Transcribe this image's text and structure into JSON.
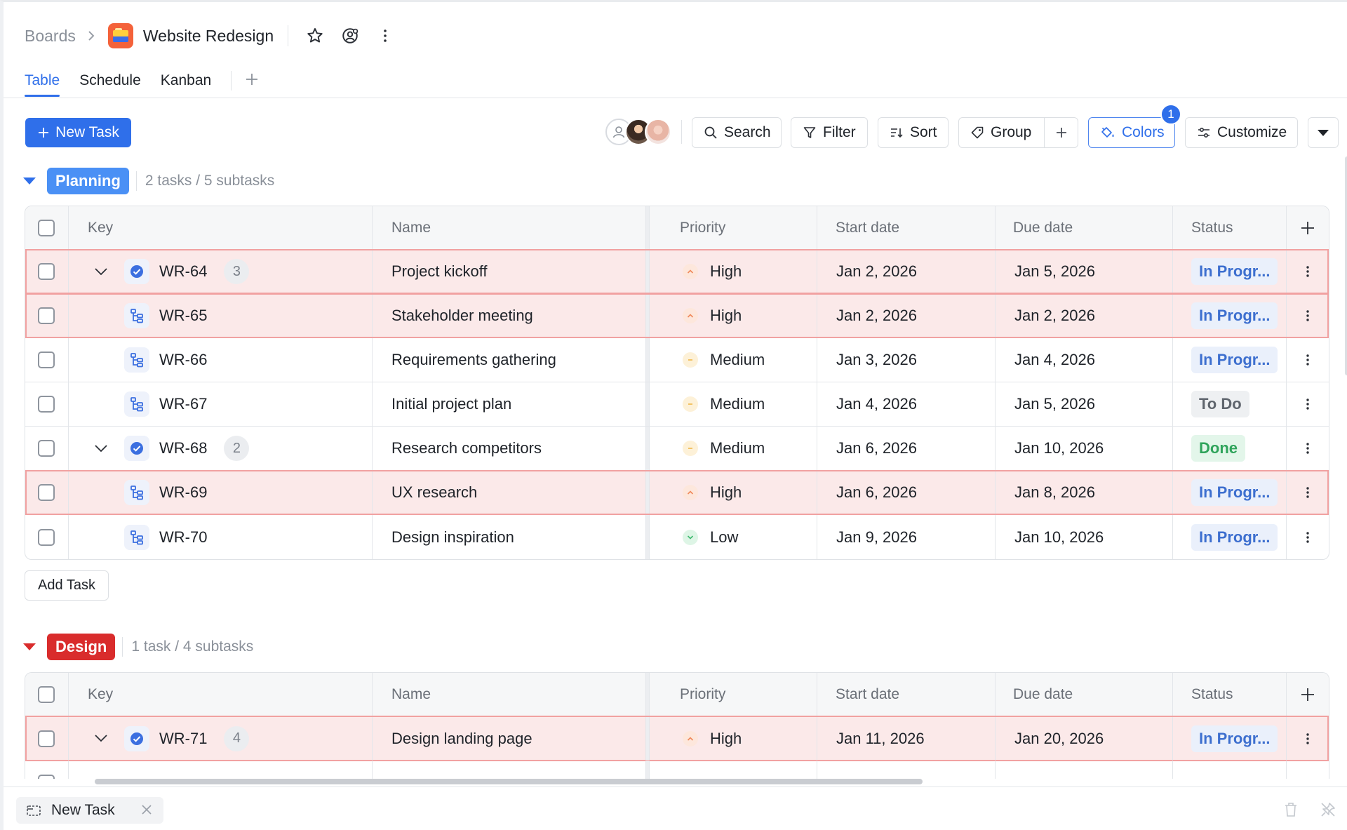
{
  "header": {
    "breadcrumb_root": "Boards",
    "board_title": "Website Redesign"
  },
  "tabs": [
    {
      "label": "Table",
      "active": true
    },
    {
      "label": "Schedule",
      "active": false
    },
    {
      "label": "Kanban",
      "active": false
    }
  ],
  "toolbar": {
    "new_task_label": "New Task",
    "search_label": "Search",
    "filter_label": "Filter",
    "sort_label": "Sort",
    "group_label": "Group",
    "colors_label": "Colors",
    "colors_badge": "1",
    "customize_label": "Customize"
  },
  "columns": {
    "key": "Key",
    "name": "Name",
    "priority": "Priority",
    "start_date": "Start date",
    "due_date": "Due date",
    "status": "Status"
  },
  "groups": [
    {
      "tag": "Planning",
      "tag_bg": "#4a90f5",
      "caret_color": "#2f6fea",
      "count": "2 tasks / 5 subtasks",
      "rows": [
        {
          "key": "WR-64",
          "type": "task",
          "subtasks": "3",
          "name": "Project kickoff",
          "priority": "High",
          "start": "Jan 2, 2026",
          "due": "Jan 5, 2026",
          "status": "In Progr...",
          "status_type": "prog",
          "highlight": true
        },
        {
          "key": "WR-65",
          "type": "subtask",
          "name": "Stakeholder meeting",
          "priority": "High",
          "start": "Jan 2, 2026",
          "due": "Jan 2, 2026",
          "status": "In Progr...",
          "status_type": "prog",
          "highlight": true
        },
        {
          "key": "WR-66",
          "type": "subtask",
          "name": "Requirements gathering",
          "priority": "Medium",
          "start": "Jan 3, 2026",
          "due": "Jan 4, 2026",
          "status": "In Progr...",
          "status_type": "prog",
          "highlight": false
        },
        {
          "key": "WR-67",
          "type": "subtask",
          "name": "Initial project plan",
          "priority": "Medium",
          "start": "Jan 4, 2026",
          "due": "Jan 5, 2026",
          "status": "To Do",
          "status_type": "todo",
          "highlight": false
        },
        {
          "key": "WR-68",
          "type": "task",
          "subtasks": "2",
          "name": "Research competitors",
          "priority": "Medium",
          "start": "Jan 6, 2026",
          "due": "Jan 10, 2026",
          "status": "Done",
          "status_type": "done",
          "highlight": false
        },
        {
          "key": "WR-69",
          "type": "subtask",
          "name": "UX research",
          "priority": "High",
          "start": "Jan 6, 2026",
          "due": "Jan 8, 2026",
          "status": "In Progr...",
          "status_type": "prog",
          "highlight": true
        },
        {
          "key": "WR-70",
          "type": "subtask",
          "name": "Design inspiration",
          "priority": "Low",
          "start": "Jan 9, 2026",
          "due": "Jan 10, 2026",
          "status": "In Progr...",
          "status_type": "prog",
          "highlight": false
        }
      ]
    },
    {
      "tag": "Design",
      "tag_bg": "#d92c2c",
      "caret_color": "#d92c2c",
      "count": "1 task / 4 subtasks",
      "rows": [
        {
          "key": "WR-71",
          "type": "task",
          "subtasks": "4",
          "name": "Design landing page",
          "priority": "High",
          "start": "Jan 11, 2026",
          "due": "Jan 20, 2026",
          "status": "In Progr...",
          "status_type": "prog",
          "highlight": true
        }
      ]
    }
  ],
  "add_task_label": "Add Task",
  "bottom_bar": {
    "tab_label": "New Task"
  }
}
